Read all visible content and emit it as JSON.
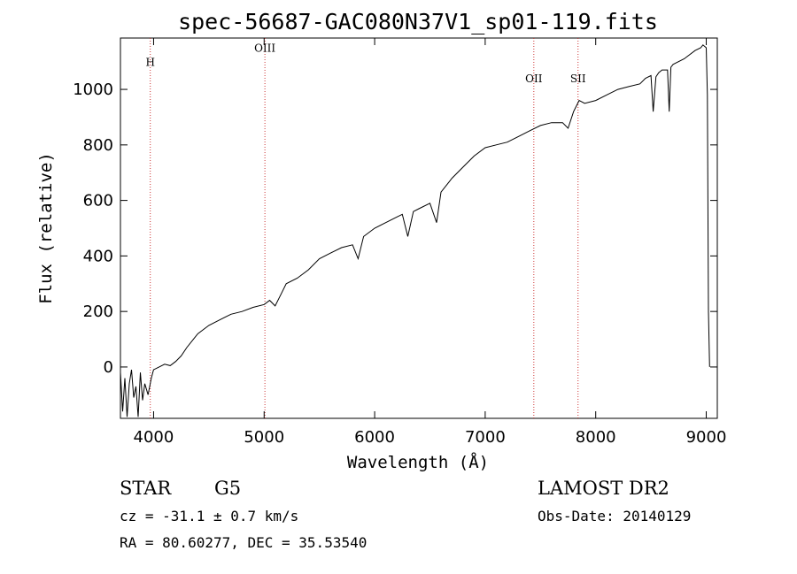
{
  "chart_data": {
    "type": "line",
    "title": "spec-56687-GAC080N37V1_sp01-119.fits",
    "xlabel": "Wavelength (Å)",
    "ylabel": "Flux (relative)",
    "xlim": [
      3700,
      9100
    ],
    "ylim": [
      -185,
      1185
    ],
    "x_ticks": [
      4000,
      5000,
      6000,
      7000,
      8000,
      9000
    ],
    "y_ticks": [
      0,
      200,
      400,
      600,
      800,
      1000
    ],
    "grid": false,
    "series": [
      {
        "name": "spectrum",
        "x": [
          3700,
          3720,
          3740,
          3760,
          3780,
          3800,
          3820,
          3840,
          3860,
          3880,
          3900,
          3920,
          3950,
          3980,
          4000,
          4050,
          4100,
          4150,
          4200,
          4250,
          4300,
          4400,
          4500,
          4600,
          4700,
          4800,
          4900,
          5000,
          5050,
          5100,
          5150,
          5200,
          5300,
          5400,
          5500,
          5600,
          5700,
          5800,
          5850,
          5900,
          6000,
          6100,
          6200,
          6250,
          6300,
          6350,
          6400,
          6500,
          6560,
          6600,
          6700,
          6800,
          6900,
          7000,
          7100,
          7200,
          7300,
          7400,
          7500,
          7600,
          7700,
          7750,
          7800,
          7850,
          7900,
          8000,
          8100,
          8200,
          8300,
          8400,
          8450,
          8500,
          8520,
          8545,
          8570,
          8600,
          8650,
          8665,
          8680,
          8700,
          8800,
          8900,
          8950,
          8970,
          9000,
          9010,
          9020,
          9030
        ],
        "y": [
          -20,
          -160,
          -40,
          -180,
          -60,
          -10,
          -110,
          -70,
          -180,
          -20,
          -120,
          -60,
          -100,
          -40,
          -10,
          0,
          10,
          5,
          20,
          40,
          70,
          120,
          150,
          170,
          190,
          200,
          215,
          225,
          240,
          220,
          260,
          300,
          320,
          350,
          390,
          410,
          430,
          440,
          390,
          470,
          500,
          520,
          540,
          550,
          470,
          560,
          570,
          590,
          520,
          630,
          680,
          720,
          760,
          790,
          800,
          810,
          830,
          850,
          870,
          880,
          880,
          860,
          920,
          960,
          950,
          960,
          980,
          1000,
          1010,
          1020,
          1040,
          1050,
          920,
          1045,
          1060,
          1070,
          1070,
          920,
          1080,
          1090,
          1110,
          1140,
          1150,
          1160,
          1150,
          980,
          200,
          0
        ]
      }
    ],
    "line_markers": [
      {
        "label": "H",
        "wavelength": 3970,
        "label_flux": 1085
      },
      {
        "label": "OIII",
        "wavelength": 5007,
        "label_flux": 1135
      },
      {
        "label": "OII",
        "wavelength": 7440,
        "label_flux": 1025
      },
      {
        "label": "SII",
        "wavelength": 7840,
        "label_flux": 1025
      }
    ]
  },
  "info": {
    "object_class": "STAR",
    "subclass": "G5",
    "survey": "LAMOST DR2",
    "cz": "cz = -31.1 ± 0.7 km/s",
    "obs_date": "Obs-Date: 20140129",
    "coordinates": "RA =  80.60277, DEC =  35.53540"
  }
}
